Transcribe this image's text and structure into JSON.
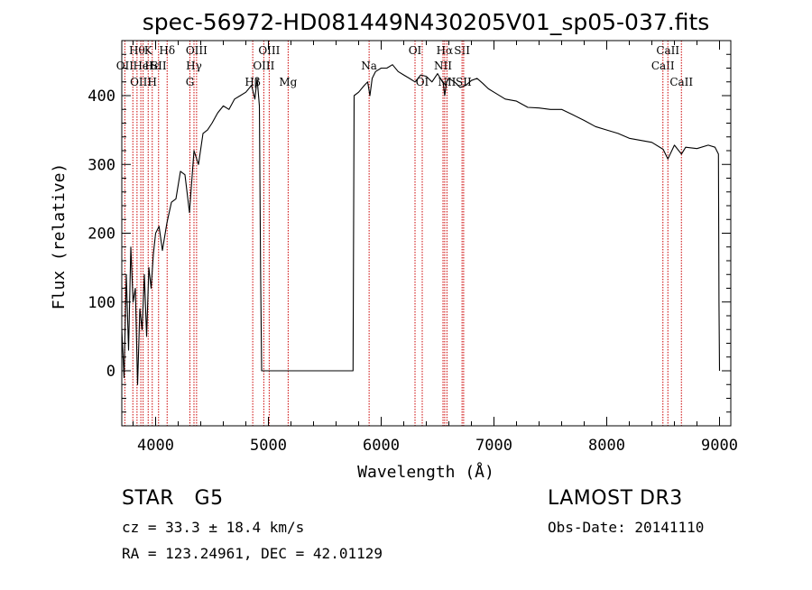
{
  "chart_data": {
    "type": "line",
    "title": "spec-56972-HD081449N430205V01_sp05-037.fits",
    "xlabel": "Wavelength (Å)",
    "ylabel": "Flux (relative)",
    "xlim": [
      3700,
      9100
    ],
    "ylim": [
      -80,
      480
    ],
    "xticks": [
      4000,
      5000,
      6000,
      7000,
      8000,
      9000
    ],
    "yticks": [
      0,
      100,
      200,
      300,
      400
    ],
    "series": [
      {
        "name": "flux",
        "x": [
          3700,
          3720,
          3740,
          3760,
          3780,
          3800,
          3820,
          3840,
          3860,
          3880,
          3900,
          3920,
          3940,
          3960,
          3980,
          4000,
          4030,
          4060,
          4100,
          4140,
          4180,
          4220,
          4260,
          4300,
          4340,
          4380,
          4420,
          4460,
          4500,
          4550,
          4600,
          4650,
          4700,
          4750,
          4800,
          4850,
          4880,
          4900,
          4920,
          4930,
          4940,
          5700,
          5750,
          5760,
          5800,
          5850,
          5880,
          5900,
          5920,
          5950,
          6000,
          6050,
          6100,
          6150,
          6200,
          6250,
          6300,
          6350,
          6400,
          6450,
          6500,
          6550,
          6563,
          6580,
          6600,
          6650,
          6700,
          6750,
          6800,
          6850,
          6900,
          6950,
          7000,
          7100,
          7200,
          7300,
          7400,
          7500,
          7600,
          7700,
          7800,
          7900,
          8000,
          8100,
          8200,
          8300,
          8400,
          8500,
          8542,
          8600,
          8662,
          8700,
          8800,
          8900,
          8960,
          8990,
          8995,
          9000
        ],
        "values": [
          60,
          -10,
          140,
          30,
          180,
          100,
          120,
          -20,
          90,
          60,
          140,
          50,
          150,
          120,
          170,
          200,
          210,
          175,
          215,
          245,
          250,
          290,
          285,
          230,
          320,
          300,
          345,
          350,
          360,
          375,
          385,
          380,
          395,
          400,
          405,
          415,
          395,
          425,
          385,
          150,
          0,
          0,
          0,
          400,
          405,
          415,
          420,
          400,
          425,
          435,
          440,
          440,
          445,
          435,
          430,
          425,
          420,
          430,
          428,
          420,
          432,
          418,
          400,
          420,
          425,
          420,
          412,
          415,
          422,
          425,
          418,
          410,
          405,
          395,
          392,
          383,
          382,
          380,
          380,
          372,
          364,
          355,
          350,
          345,
          338,
          335,
          332,
          322,
          308,
          328,
          315,
          325,
          323,
          328,
          325,
          315,
          100,
          0
        ]
      }
    ],
    "lines": [
      {
        "w": 3727,
        "labels": [
          "OII"
        ],
        "rows": [
          1
        ]
      },
      {
        "w": 3798,
        "labels": [],
        "rows": []
      },
      {
        "w": 3835,
        "labels": [
          "Hθ"
        ],
        "rows": [
          0
        ]
      },
      {
        "w": 3869,
        "labels": [
          "OIII"
        ],
        "rows": [
          2
        ]
      },
      {
        "w": 3889,
        "labels": [
          "HeI"
        ],
        "rows": [
          1
        ]
      },
      {
        "w": 3934,
        "labels": [
          "K"
        ],
        "rows": [
          0
        ]
      },
      {
        "w": 3970,
        "labels": [
          "Hε",
          "H"
        ],
        "rows": [
          1,
          2
        ]
      },
      {
        "w": 4026,
        "labels": [
          "SII"
        ],
        "rows": [
          1
        ]
      },
      {
        "w": 4102,
        "labels": [
          "Hδ"
        ],
        "rows": [
          0
        ]
      },
      {
        "w": 4304,
        "labels": [
          "G"
        ],
        "rows": [
          2
        ]
      },
      {
        "w": 4340,
        "labels": [
          "Hγ"
        ],
        "rows": [
          1
        ]
      },
      {
        "w": 4363,
        "labels": [
          "OIII"
        ],
        "rows": [
          0
        ]
      },
      {
        "w": 4861,
        "labels": [
          "Hβ"
        ],
        "rows": [
          2
        ]
      },
      {
        "w": 4959,
        "labels": [
          "OIII"
        ],
        "rows": [
          1
        ]
      },
      {
        "w": 5007,
        "labels": [
          "OIII"
        ],
        "rows": [
          0
        ]
      },
      {
        "w": 5175,
        "labels": [
          "Mg"
        ],
        "rows": [
          2
        ]
      },
      {
        "w": 5893,
        "labels": [
          "Na"
        ],
        "rows": [
          1
        ]
      },
      {
        "w": 6300,
        "labels": [
          "OI"
        ],
        "rows": [
          0
        ]
      },
      {
        "w": 6364,
        "labels": [
          "OI"
        ],
        "rows": [
          2
        ]
      },
      {
        "w": 6548,
        "labels": [
          "NII"
        ],
        "rows": [
          1
        ]
      },
      {
        "w": 6563,
        "labels": [
          "Hα"
        ],
        "rows": [
          0
        ]
      },
      {
        "w": 6583,
        "labels": [
          "NII"
        ],
        "rows": [
          2
        ]
      },
      {
        "w": 6717,
        "labels": [
          "SII"
        ],
        "rows": [
          0
        ]
      },
      {
        "w": 6731,
        "labels": [
          "SII"
        ],
        "rows": [
          2
        ]
      },
      {
        "w": 8498,
        "labels": [
          "CaII"
        ],
        "rows": [
          1
        ]
      },
      {
        "w": 8542,
        "labels": [
          "CaII"
        ],
        "rows": [
          0
        ]
      },
      {
        "w": 8662,
        "labels": [
          "CaII"
        ],
        "rows": [
          2
        ]
      }
    ]
  },
  "info": {
    "class": "STAR",
    "subclass": "G5",
    "survey": "LAMOST DR3",
    "cz": "cz = 33.3 ± 18.4 km/s",
    "obs_date": "Obs-Date: 20141110",
    "coords": "RA = 123.24961, DEC =  42.01129"
  },
  "colors": {
    "spectrum": "#000000",
    "line_markers": "#cc0000"
  }
}
